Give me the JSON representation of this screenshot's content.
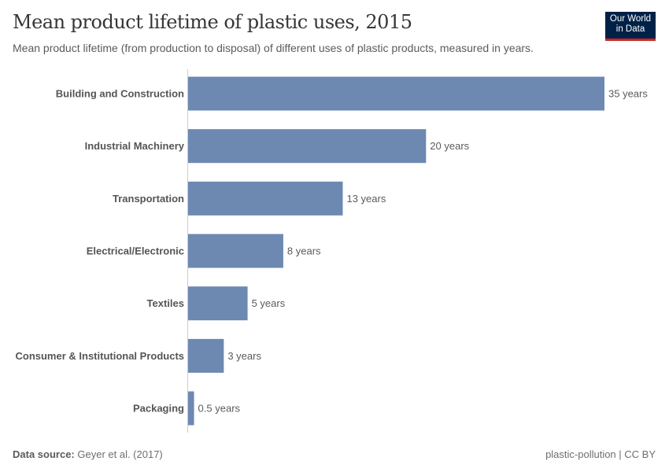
{
  "header": {
    "title": "Mean product lifetime of plastic uses, 2015",
    "subtitle": "Mean product lifetime (from production to disposal) of different uses of plastic products, measured in years.",
    "logo": "Our World in Data"
  },
  "footer": {
    "source_label": "Data source:",
    "source": "Geyer et al. (2017)",
    "right": "plastic-pollution | CC BY"
  },
  "chart_data": {
    "type": "bar",
    "orientation": "horizontal",
    "bar_color": "#6d88b1",
    "unit": "years",
    "categories": [
      "Building and Construction",
      "Industrial Machinery",
      "Transportation",
      "Electrical/Electronic",
      "Textiles",
      "Consumer & Institutional Products",
      "Packaging"
    ],
    "values": [
      35,
      20,
      13,
      8,
      5,
      3,
      0.5
    ],
    "labels": [
      "35 years",
      "20 years",
      "13 years",
      "8 years",
      "5 years",
      "3 years",
      "0.5 years"
    ],
    "xlim": [
      0,
      35
    ],
    "grid": false
  }
}
